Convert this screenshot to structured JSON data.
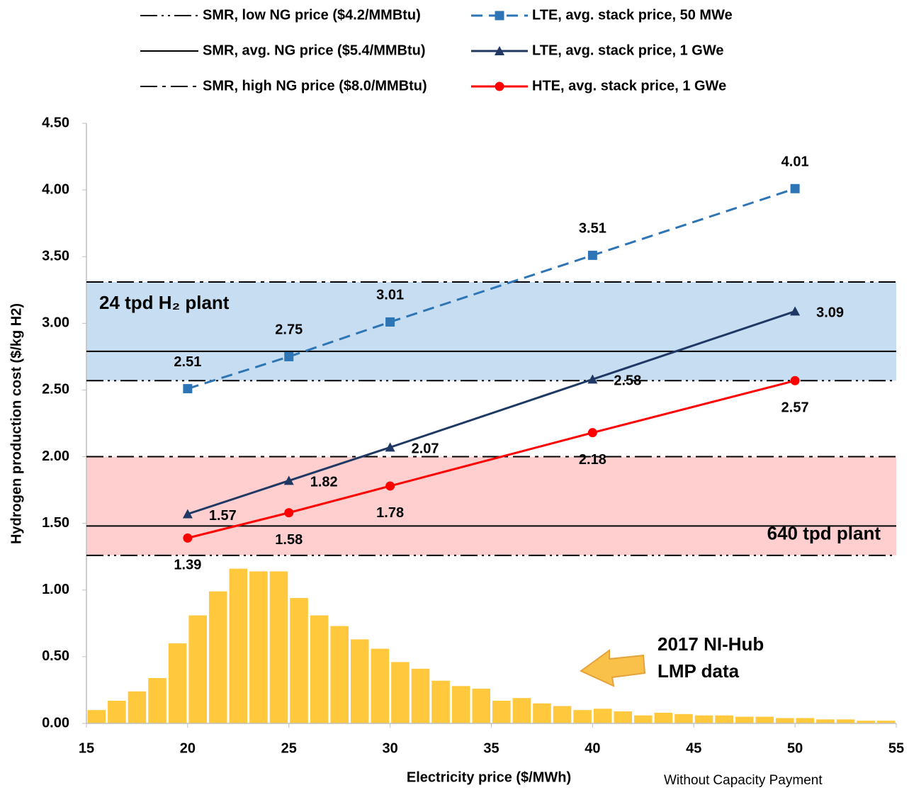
{
  "chart_data": {
    "type": "line",
    "x_label": "Electricity price ($/MWh)",
    "y_label": "Hydrogen production cost ($/kg H2)",
    "xlim": [
      15,
      55
    ],
    "xticks": [
      15,
      20,
      25,
      30,
      35,
      40,
      45,
      50,
      55
    ],
    "ylim": [
      0,
      4.5
    ],
    "yticks": [
      {
        "value": 0,
        "label": "0.00"
      },
      {
        "value": 0.5,
        "label": "0.50"
      },
      {
        "value": 1,
        "label": "1.00"
      },
      {
        "value": 1.5,
        "label": "1.50"
      },
      {
        "value": 2,
        "label": "2.00"
      },
      {
        "value": 2.5,
        "label": "2.50"
      },
      {
        "value": 3,
        "label": "3.00"
      },
      {
        "value": 3.5,
        "label": "3.50"
      },
      {
        "value": 4,
        "label": "4.00"
      },
      {
        "value": 4.5,
        "label": "4.50"
      }
    ],
    "grid": false,
    "legend": "top",
    "reference_lines": [
      {
        "name": "SMR, low NG price ($4.2/MMBtu)",
        "color": "#000000",
        "dash": "dash-dot-dot",
        "values": [
          2.57,
          1.26
        ]
      },
      {
        "name": "SMR, avg. NG price ($5.4/MMBtu)",
        "color": "#000000",
        "dash": "solid",
        "values": [
          2.79,
          1.48
        ]
      },
      {
        "name": "SMR, high NG price ($8.0/MMBtu)",
        "color": "#000000",
        "dash": "dash-dot",
        "values": [
          3.31,
          2.0
        ]
      }
    ],
    "bands": [
      {
        "label": "24 tpd H₂ plant",
        "color": "#bdd7ee",
        "text_color": "#1f3864"
      },
      {
        "label": "640 tpd plant",
        "color": "#ffc7c7",
        "text_color": "#c00000"
      }
    ],
    "histogram": {
      "color": "#ffc83d",
      "bins": [
        15,
        16,
        17,
        18,
        19,
        20,
        21,
        22,
        23,
        24,
        25,
        26,
        27,
        28,
        29,
        30,
        31,
        32,
        33,
        34,
        35,
        36,
        37,
        38,
        39,
        40,
        41,
        42,
        43,
        44,
        45,
        46,
        47,
        48,
        49,
        50,
        51,
        52,
        53,
        54,
        55
      ],
      "counts": [
        0.1,
        0.17,
        0.24,
        0.34,
        0.6,
        0.81,
        0.99,
        1.16,
        1.14,
        1.14,
        0.94,
        0.81,
        0.73,
        0.63,
        0.56,
        0.46,
        0.41,
        0.32,
        0.28,
        0.26,
        0.17,
        0.19,
        0.15,
        0.13,
        0.1,
        0.11,
        0.09,
        0.06,
        0.08,
        0.07,
        0.06,
        0.06,
        0.05,
        0.05,
        0.04,
        0.04,
        0.03,
        0.03,
        0.02,
        0.02
      ]
    },
    "series": [
      {
        "name": "LTE, avg. stack price, 50 MWe",
        "color": "#2e75b6",
        "style": "dashed",
        "marker": "square",
        "x": [
          20,
          25,
          30,
          40,
          50
        ],
        "values": [
          2.51,
          2.75,
          3.01,
          3.51,
          4.01
        ]
      },
      {
        "name": "LTE, avg. stack price, 1 GWe",
        "color": "#1f3864",
        "style": "solid",
        "marker": "triangle",
        "x": [
          20,
          25,
          30,
          40,
          50
        ],
        "values": [
          1.57,
          1.82,
          2.07,
          2.58,
          3.09
        ]
      },
      {
        "name": "HTE, avg. stack price, 1 GWe",
        "color": "#ff0000",
        "style": "solid",
        "marker": "circle",
        "x": [
          20,
          25,
          30,
          40,
          50
        ],
        "values": [
          1.39,
          1.58,
          1.78,
          2.18,
          2.57
        ]
      }
    ],
    "annotation": {
      "lines": [
        "2017 NI-Hub",
        "LMP data"
      ],
      "color": "#ffc000"
    },
    "footer": [
      {
        "text": "Without",
        "color": "#c00000"
      },
      {
        "text": "Capacity Payment",
        "color": "#2e75b6"
      }
    ]
  }
}
